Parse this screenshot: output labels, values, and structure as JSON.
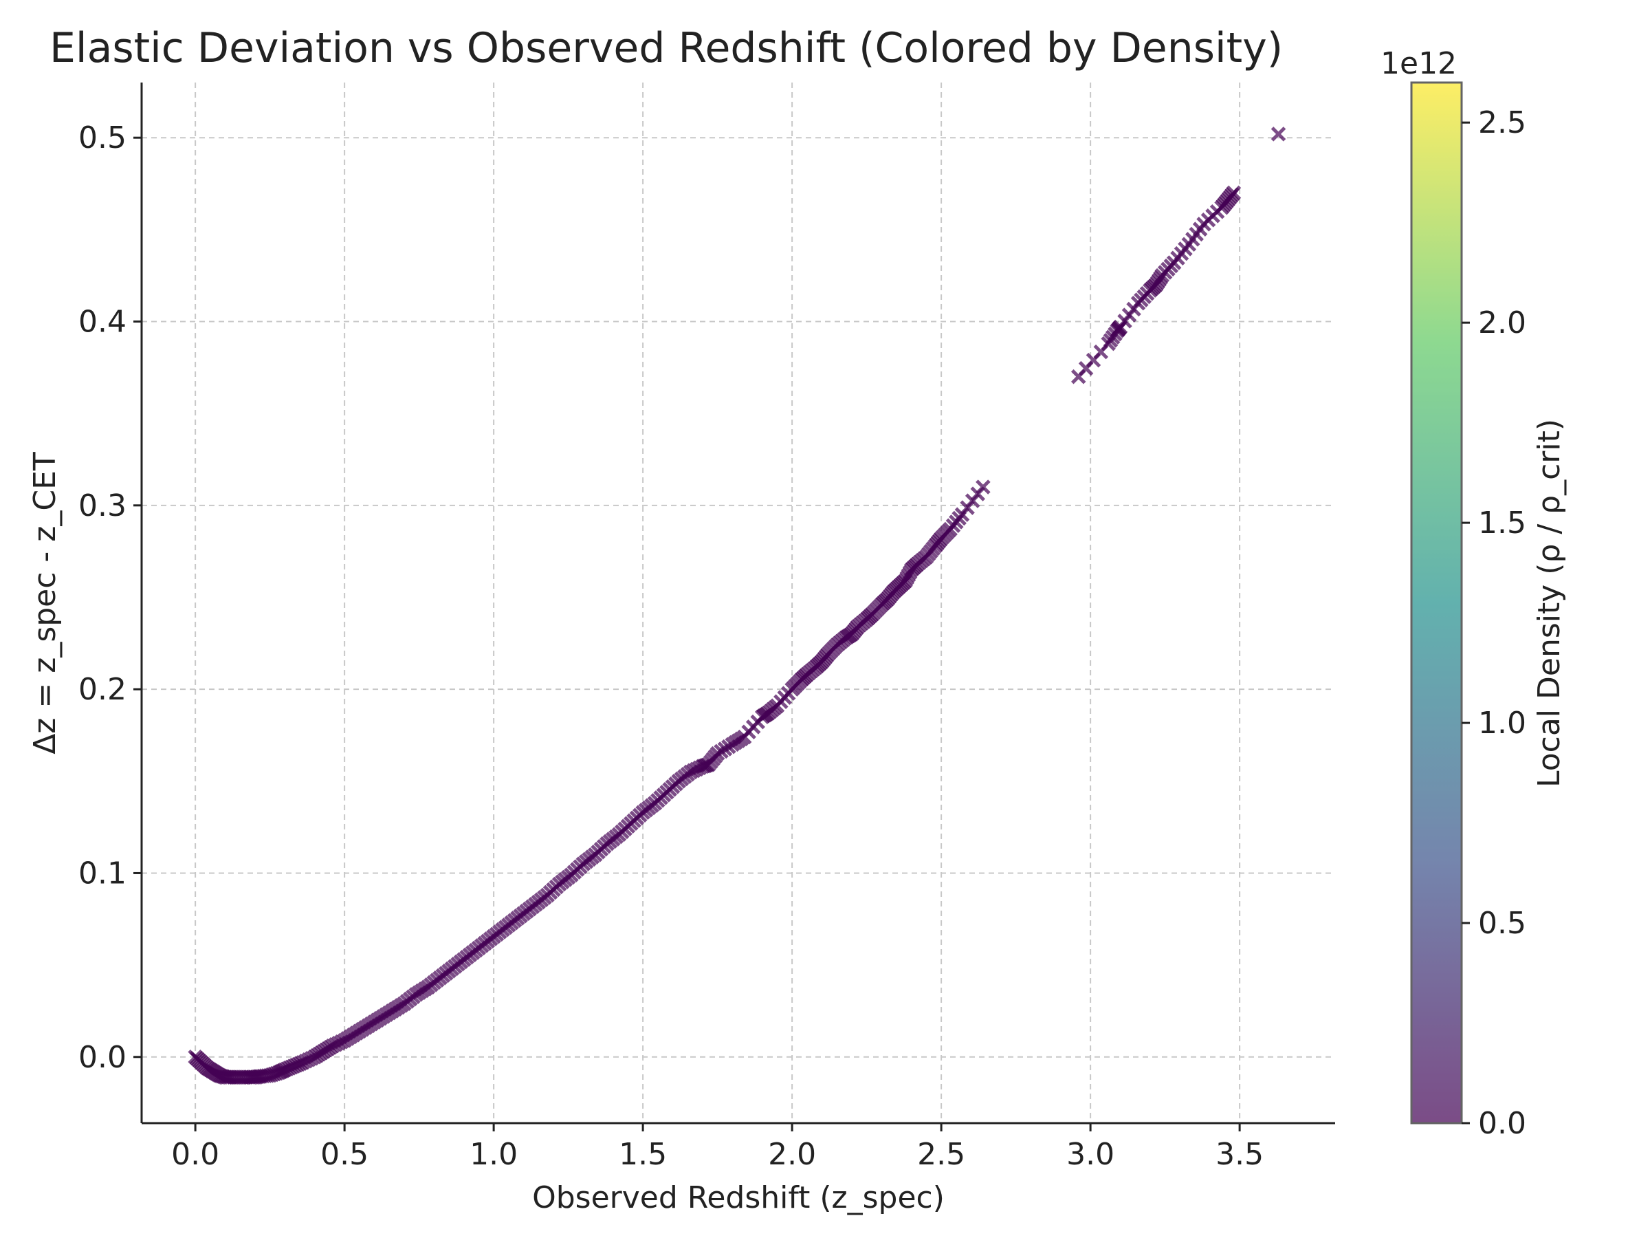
{
  "chart_data": {
    "type": "scatter",
    "title": "Elastic Deviation vs Observed Redshift (Colored by Density)",
    "xlabel": "Observed Redshift (z_spec)",
    "ylabel": "Δz = z_spec - z_CET",
    "xlim": [
      -0.18,
      3.82
    ],
    "ylim": [
      -0.036,
      0.53
    ],
    "x_ticks": [
      "0.0",
      "0.5",
      "1.0",
      "1.5",
      "2.0",
      "2.5",
      "3.0",
      "3.5"
    ],
    "x_tick_values": [
      0.0,
      0.5,
      1.0,
      1.5,
      2.0,
      2.5,
      3.0,
      3.5
    ],
    "y_ticks": [
      "0.0",
      "0.1",
      "0.2",
      "0.3",
      "0.4",
      "0.5"
    ],
    "y_tick_values": [
      0.0,
      0.1,
      0.2,
      0.3,
      0.4,
      0.5
    ],
    "grid": true,
    "marker": "x",
    "marker_color": "#440154",
    "colorbar": {
      "label": "Local Density (ρ / ρ_crit)",
      "offset_text": "1e12",
      "range": [
        0.0,
        2.6
      ],
      "ticks": [
        "0.0",
        "0.5",
        "1.0",
        "1.5",
        "2.0",
        "2.5"
      ],
      "tick_values": [
        0.0,
        0.5,
        1.0,
        1.5,
        2.0,
        2.5
      ],
      "colormap": [
        "#440154",
        "#3b528b",
        "#21918c",
        "#5ec962",
        "#fde725"
      ]
    },
    "series": [
      {
        "x": [
          0.0,
          0.02,
          0.04,
          0.06,
          0.08,
          0.1,
          0.12,
          0.15,
          0.18,
          0.2,
          0.22,
          0.25,
          0.28,
          0.3,
          0.33,
          0.36,
          0.4,
          0.43,
          0.46,
          0.5,
          0.54,
          0.58,
          0.62,
          0.66,
          0.7,
          0.74,
          0.78,
          0.82,
          0.86,
          0.9,
          0.94,
          0.98,
          1.02,
          1.06,
          1.1,
          1.14,
          1.18,
          1.22,
          1.26,
          1.3,
          1.34,
          1.38,
          1.42,
          1.46,
          1.5,
          1.54,
          1.58,
          1.62,
          1.66,
          1.7,
          1.72,
          1.75,
          1.8,
          1.84,
          1.9,
          1.92,
          1.95,
          2.0,
          2.03,
          2.05,
          2.08,
          2.1,
          2.12,
          2.15,
          2.18,
          2.2,
          2.22,
          2.25,
          2.27,
          2.3,
          2.32,
          2.34,
          2.36,
          2.38,
          2.4,
          2.42,
          2.45,
          2.48,
          2.5,
          2.53,
          2.57,
          2.64,
          2.96,
          3.06,
          3.09,
          3.1,
          3.16,
          3.2,
          3.22,
          3.24,
          3.28,
          3.33,
          3.38,
          3.44,
          3.46,
          3.48,
          3.63
        ],
        "y": [
          0.0,
          -0.003,
          -0.006,
          -0.008,
          -0.01,
          -0.011,
          -0.011,
          -0.011,
          -0.011,
          -0.011,
          -0.0105,
          -0.01,
          -0.0085,
          -0.007,
          -0.005,
          -0.003,
          0.0,
          0.003,
          0.006,
          0.009,
          0.013,
          0.017,
          0.021,
          0.025,
          0.029,
          0.034,
          0.038,
          0.043,
          0.048,
          0.053,
          0.058,
          0.063,
          0.068,
          0.073,
          0.078,
          0.083,
          0.088,
          0.094,
          0.099,
          0.105,
          0.11,
          0.116,
          0.121,
          0.127,
          0.133,
          0.138,
          0.144,
          0.15,
          0.155,
          0.158,
          0.159,
          0.165,
          0.17,
          0.174,
          0.185,
          0.187,
          0.191,
          0.2,
          0.205,
          0.208,
          0.212,
          0.215,
          0.219,
          0.224,
          0.228,
          0.23,
          0.234,
          0.238,
          0.241,
          0.246,
          0.249,
          0.253,
          0.256,
          0.259,
          0.265,
          0.268,
          0.272,
          0.278,
          0.282,
          0.287,
          0.295,
          0.31,
          0.37,
          0.388,
          0.395,
          0.397,
          0.41,
          0.417,
          0.42,
          0.425,
          0.432,
          0.442,
          0.453,
          0.462,
          0.466,
          0.47,
          0.502
        ]
      }
    ]
  }
}
